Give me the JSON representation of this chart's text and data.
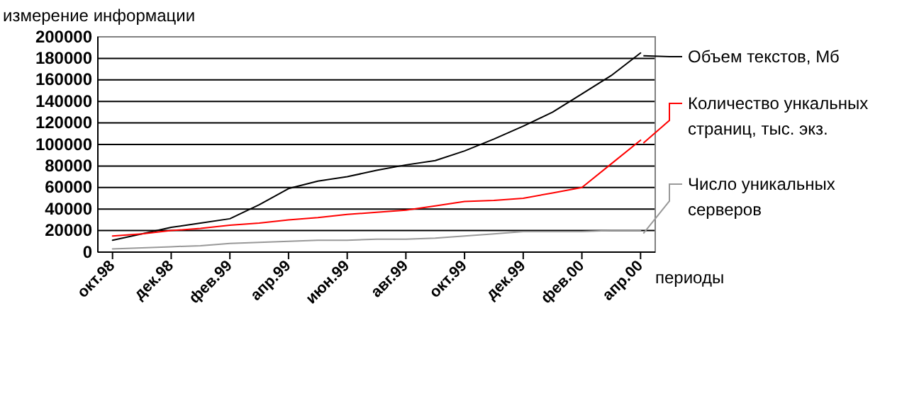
{
  "chart_data": {
    "type": "line",
    "ylabel": "измерение информации",
    "xlabel": "периоды",
    "categories": [
      "окт.98",
      null,
      "дек.98",
      null,
      "фев.99",
      null,
      "апр.99",
      null,
      "июн.99",
      null,
      "авг.99",
      null,
      "окт.99",
      null,
      "дек.99",
      null,
      "фев.00",
      null,
      "апр.00"
    ],
    "series": [
      {
        "name": "Объем текстов, Мб",
        "color": "#000000",
        "values": [
          11000,
          17000,
          23000,
          27000,
          31000,
          44000,
          59000,
          66000,
          70000,
          76000,
          81000,
          85000,
          94000,
          105000,
          117000,
          130000,
          147000,
          164000,
          185000
        ]
      },
      {
        "name": "Количество ункальных страниц, тыс. экз.",
        "color": "#ff0000",
        "values": [
          15000,
          17000,
          20000,
          22000,
          25000,
          27000,
          30000,
          32000,
          35000,
          37000,
          39000,
          43000,
          47000,
          48000,
          50000,
          55000,
          60000,
          82000,
          104000
        ]
      },
      {
        "name": "Число уникальных серверов",
        "color": "#999999",
        "values": [
          3000,
          4000,
          5000,
          6000,
          8000,
          9000,
          10000,
          11000,
          11000,
          12000,
          12000,
          13000,
          15000,
          17000,
          19000,
          19000,
          19000,
          20000,
          20000
        ]
      }
    ],
    "ylim": [
      0,
      200000
    ],
    "yticks": [
      0,
      20000,
      40000,
      60000,
      80000,
      100000,
      120000,
      140000,
      160000,
      180000,
      200000
    ],
    "grid": "y",
    "legend": "right"
  }
}
